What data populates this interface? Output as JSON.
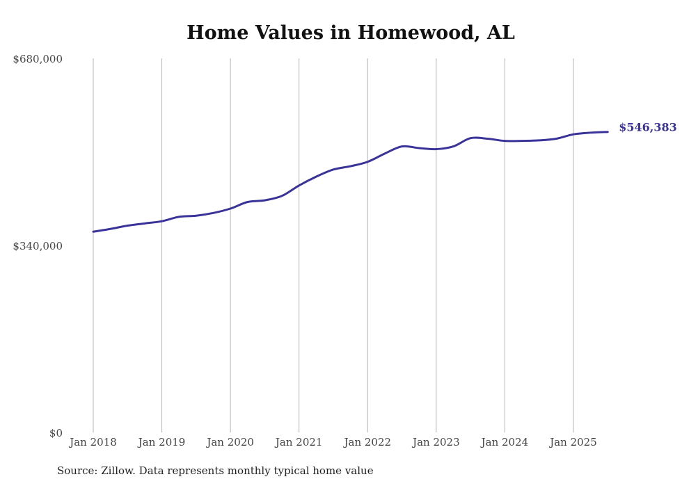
{
  "chart_data": {
    "type": "line",
    "title": "Home Values in Homewood, AL",
    "xlabel": "",
    "ylabel": "",
    "ylim": [
      0,
      680000
    ],
    "yticks": [
      {
        "value": 0,
        "label": "$0"
      },
      {
        "value": 340000,
        "label": "$340,000"
      },
      {
        "value": 680000,
        "label": "$680,000"
      }
    ],
    "xticks": [
      {
        "value": 2018,
        "label": "Jan 2018"
      },
      {
        "value": 2019,
        "label": "Jan 2019"
      },
      {
        "value": 2020,
        "label": "Jan 2020"
      },
      {
        "value": 2021,
        "label": "Jan 2021"
      },
      {
        "value": 2022,
        "label": "Jan 2022"
      },
      {
        "value": 2023,
        "label": "Jan 2023"
      },
      {
        "value": 2024,
        "label": "Jan 2024"
      },
      {
        "value": 2025,
        "label": "Jan 2025"
      }
    ],
    "grid": "vertical",
    "series": [
      {
        "name": "Typical home value",
        "color": "#3a3399",
        "x": [
          2018.0,
          2018.25,
          2018.5,
          2018.75,
          2019.0,
          2019.25,
          2019.5,
          2019.75,
          2020.0,
          2020.25,
          2020.5,
          2020.75,
          2021.0,
          2021.25,
          2021.5,
          2021.75,
          2022.0,
          2022.25,
          2022.5,
          2022.75,
          2023.0,
          2023.25,
          2023.5,
          2023.75,
          2024.0,
          2024.25,
          2024.5,
          2024.75,
          2025.0,
          2025.25,
          2025.5
        ],
        "values": [
          365000,
          370000,
          376000,
          380000,
          384000,
          392000,
          394000,
          399000,
          407000,
          419000,
          422000,
          430000,
          449000,
          465000,
          478000,
          484000,
          492000,
          507000,
          520000,
          517000,
          515000,
          520000,
          535000,
          534000,
          530000,
          530000,
          531000,
          534000,
          542000,
          545000,
          546383
        ]
      }
    ],
    "end_label": "$546,383"
  },
  "source": "Source: Zillow. Data represents monthly typical home value"
}
